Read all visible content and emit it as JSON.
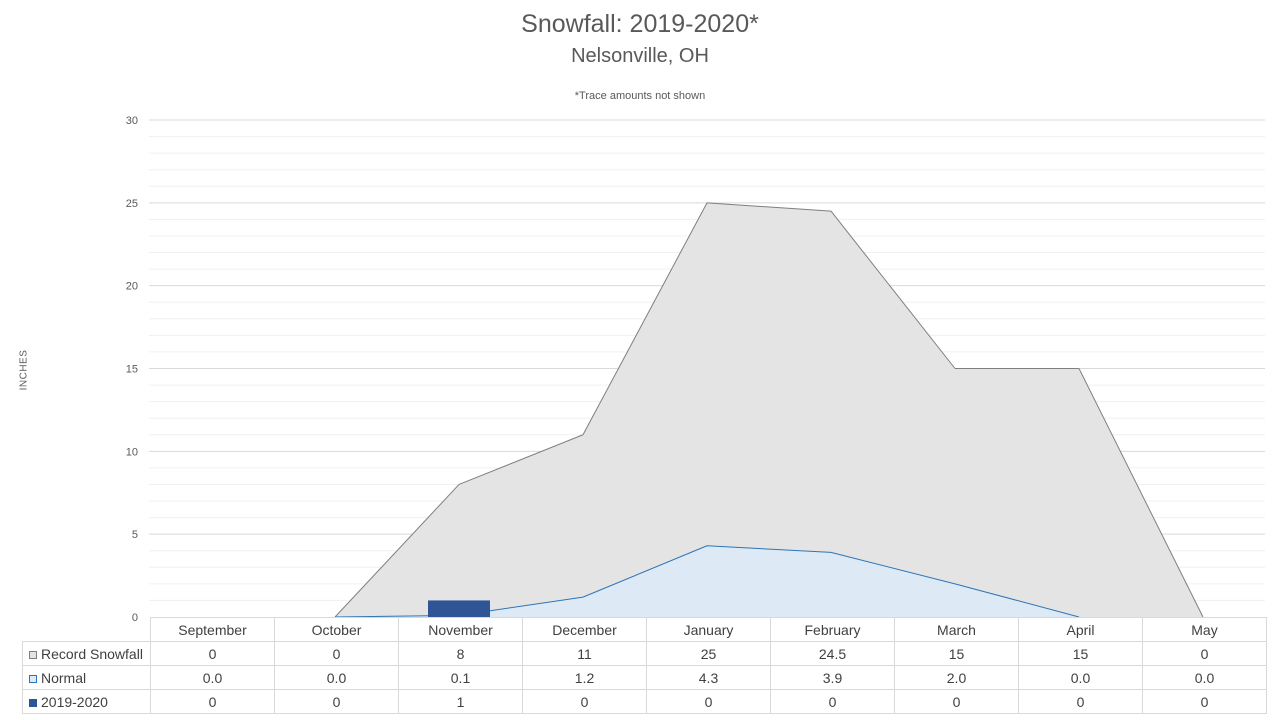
{
  "chart_data": {
    "type": "area",
    "title": "Snowfall: 2019-2020*",
    "subtitle": "Nelsonville, OH",
    "note": "*Trace amounts not shown",
    "ylabel": "INCHES",
    "ylim": [
      0,
      30
    ],
    "yticks": [
      "0",
      "5",
      "10",
      "15",
      "20",
      "25",
      "30"
    ],
    "grid": true,
    "categories": [
      "September",
      "October",
      "November",
      "December",
      "January",
      "February",
      "March",
      "April",
      "May"
    ],
    "series": [
      {
        "name": "Record Snowfall",
        "kind": "area",
        "color": "#e4e4e4",
        "line_color": "#7f7f7f",
        "values": [
          0,
          0,
          8,
          11,
          25,
          24.5,
          15,
          15,
          0
        ],
        "labels": [
          "0",
          "0",
          "8",
          "11",
          "25",
          "24.5",
          "15",
          "15",
          "0"
        ]
      },
      {
        "name": "Normal",
        "kind": "area",
        "color": "#ddeaf6",
        "line_color": "#2e75b6",
        "values": [
          0.0,
          0.0,
          0.1,
          1.2,
          4.3,
          3.9,
          2.0,
          0.0,
          0.0
        ],
        "labels": [
          "0.0",
          "0.0",
          "0.1",
          "1.2",
          "4.3",
          "3.9",
          "2.0",
          "0.0",
          "0.0"
        ]
      },
      {
        "name": "2019-2020",
        "kind": "bar",
        "color": "#2f5597",
        "values": [
          0,
          0,
          1,
          0,
          0,
          0,
          0,
          0,
          0
        ],
        "labels": [
          "0",
          "0",
          "1",
          "0",
          "0",
          "0",
          "0",
          "0",
          "0"
        ]
      }
    ]
  }
}
